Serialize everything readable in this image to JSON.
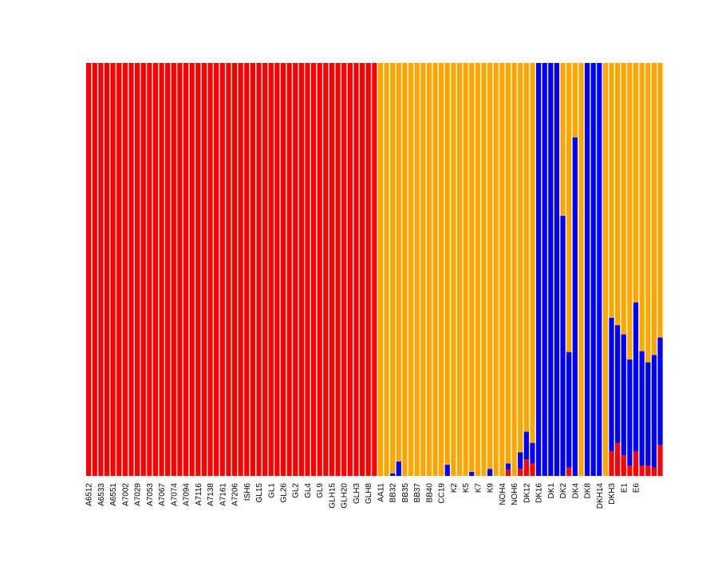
{
  "chart_data": {
    "type": "bar",
    "stacked": true,
    "normalized": true,
    "ylim": [
      0,
      1
    ],
    "grid": false,
    "legend": "none",
    "colors": {
      "red": "#ff0000",
      "blue": "#0000ff",
      "orange": "#ffa500"
    },
    "tick_labels": [
      "A6512",
      "A6533",
      "A6551",
      "A7002",
      "A7029",
      "A7053",
      "A7067",
      "A7074",
      "A7094",
      "A7116",
      "A7138",
      "A7161",
      "A7206",
      "ISH6",
      "GL15",
      "GL1",
      "GL26",
      "GL2",
      "GL4",
      "GL9",
      "GLH15",
      "GLH20",
      "GLH3",
      "GLH8",
      "AA11",
      "BB32",
      "BB35",
      "BB37",
      "BB40",
      "CC19",
      "K2",
      "K5",
      "K7",
      "K9",
      "NOH4",
      "NOH6",
      "DK12",
      "DK16",
      "DK1",
      "DK2",
      "DK4",
      "DK8",
      "DKH14",
      "DKH3",
      "E1",
      "E6"
    ],
    "samples": [
      {
        "id": 1,
        "red": 1,
        "blue": 0,
        "orange": 0
      },
      {
        "id": 2,
        "red": 1,
        "blue": 0,
        "orange": 0
      },
      {
        "id": 3,
        "red": 1,
        "blue": 0,
        "orange": 0
      },
      {
        "id": 4,
        "red": 1,
        "blue": 0,
        "orange": 0
      },
      {
        "id": 5,
        "red": 1,
        "blue": 0,
        "orange": 0
      },
      {
        "id": 6,
        "red": 1,
        "blue": 0,
        "orange": 0
      },
      {
        "id": 7,
        "red": 1,
        "blue": 0,
        "orange": 0
      },
      {
        "id": 8,
        "red": 1,
        "blue": 0,
        "orange": 0
      },
      {
        "id": 9,
        "red": 1,
        "blue": 0,
        "orange": 0
      },
      {
        "id": 10,
        "red": 1,
        "blue": 0,
        "orange": 0
      },
      {
        "id": 11,
        "red": 1,
        "blue": 0,
        "orange": 0
      },
      {
        "id": 12,
        "red": 1,
        "blue": 0,
        "orange": 0
      },
      {
        "id": 13,
        "red": 1,
        "blue": 0,
        "orange": 0
      },
      {
        "id": 14,
        "red": 1,
        "blue": 0,
        "orange": 0
      },
      {
        "id": 15,
        "red": 1,
        "blue": 0,
        "orange": 0
      },
      {
        "id": 16,
        "red": 1,
        "blue": 0,
        "orange": 0
      },
      {
        "id": 17,
        "red": 1,
        "blue": 0,
        "orange": 0
      },
      {
        "id": 18,
        "red": 1,
        "blue": 0,
        "orange": 0
      },
      {
        "id": 19,
        "red": 1,
        "blue": 0,
        "orange": 0
      },
      {
        "id": 20,
        "red": 1,
        "blue": 0,
        "orange": 0
      },
      {
        "id": 21,
        "red": 1,
        "blue": 0,
        "orange": 0
      },
      {
        "id": 22,
        "red": 1,
        "blue": 0,
        "orange": 0
      },
      {
        "id": 23,
        "red": 1,
        "blue": 0,
        "orange": 0
      },
      {
        "id": 24,
        "red": 1,
        "blue": 0,
        "orange": 0
      },
      {
        "id": 25,
        "red": 1,
        "blue": 0,
        "orange": 0
      },
      {
        "id": 26,
        "red": 1,
        "blue": 0,
        "orange": 0
      },
      {
        "id": 27,
        "red": 1,
        "blue": 0,
        "orange": 0
      },
      {
        "id": 28,
        "red": 1,
        "blue": 0,
        "orange": 0
      },
      {
        "id": 29,
        "red": 1,
        "blue": 0,
        "orange": 0
      },
      {
        "id": 30,
        "red": 1,
        "blue": 0,
        "orange": 0
      },
      {
        "id": 31,
        "red": 1,
        "blue": 0,
        "orange": 0
      },
      {
        "id": 32,
        "red": 1,
        "blue": 0,
        "orange": 0
      },
      {
        "id": 33,
        "red": 1,
        "blue": 0,
        "orange": 0
      },
      {
        "id": 34,
        "red": 1,
        "blue": 0,
        "orange": 0
      },
      {
        "id": 35,
        "red": 1,
        "blue": 0,
        "orange": 0
      },
      {
        "id": 36,
        "red": 1,
        "blue": 0,
        "orange": 0
      },
      {
        "id": 37,
        "red": 1,
        "blue": 0,
        "orange": 0
      },
      {
        "id": 38,
        "red": 1,
        "blue": 0,
        "orange": 0
      },
      {
        "id": 39,
        "red": 1,
        "blue": 0,
        "orange": 0
      },
      {
        "id": 40,
        "red": 1,
        "blue": 0,
        "orange": 0
      },
      {
        "id": 41,
        "red": 1,
        "blue": 0,
        "orange": 0
      },
      {
        "id": 42,
        "red": 1,
        "blue": 0,
        "orange": 0
      },
      {
        "id": 43,
        "red": 1,
        "blue": 0,
        "orange": 0
      },
      {
        "id": 44,
        "red": 1,
        "blue": 0,
        "orange": 0
      },
      {
        "id": 45,
        "red": 1,
        "blue": 0,
        "orange": 0
      },
      {
        "id": 46,
        "red": 1,
        "blue": 0,
        "orange": 0
      },
      {
        "id": 47,
        "red": 1,
        "blue": 0,
        "orange": 0
      },
      {
        "id": 48,
        "red": 1,
        "blue": 0,
        "orange": 0
      },
      {
        "id": 49,
        "red": 0,
        "blue": 0,
        "orange": 1
      },
      {
        "id": 50,
        "red": 0,
        "blue": 0,
        "orange": 1
      },
      {
        "id": 51,
        "red": 0,
        "blue": 0.006,
        "orange": 0.994
      },
      {
        "id": 52,
        "red": 0,
        "blue": 0.035,
        "orange": 0.965
      },
      {
        "id": 53,
        "red": 0,
        "blue": 0,
        "orange": 1
      },
      {
        "id": 54,
        "red": 0,
        "blue": 0,
        "orange": 1
      },
      {
        "id": 55,
        "red": 0,
        "blue": 0,
        "orange": 1
      },
      {
        "id": 56,
        "red": 0,
        "blue": 0,
        "orange": 1
      },
      {
        "id": 57,
        "red": 0,
        "blue": 0,
        "orange": 1
      },
      {
        "id": 58,
        "red": 0,
        "blue": 0,
        "orange": 1
      },
      {
        "id": 59,
        "red": 0,
        "blue": 0,
        "orange": 1
      },
      {
        "id": 60,
        "red": 0,
        "blue": 0.027,
        "orange": 0.973
      },
      {
        "id": 61,
        "red": 0,
        "blue": 0,
        "orange": 1
      },
      {
        "id": 62,
        "red": 0,
        "blue": 0,
        "orange": 1
      },
      {
        "id": 63,
        "red": 0,
        "blue": 0,
        "orange": 1
      },
      {
        "id": 64,
        "red": 0,
        "blue": 0.01,
        "orange": 0.99
      },
      {
        "id": 65,
        "red": 0,
        "blue": 0,
        "orange": 1
      },
      {
        "id": 66,
        "red": 0,
        "blue": 0,
        "orange": 1
      },
      {
        "id": 67,
        "red": 0,
        "blue": 0.017,
        "orange": 0.983
      },
      {
        "id": 68,
        "red": 0,
        "blue": 0,
        "orange": 1
      },
      {
        "id": 69,
        "red": 0,
        "blue": 0,
        "orange": 1
      },
      {
        "id": 70,
        "red": 0.015,
        "blue": 0.015,
        "orange": 0.97
      },
      {
        "id": 71,
        "red": 0,
        "blue": 0,
        "orange": 1
      },
      {
        "id": 72,
        "red": 0.017,
        "blue": 0.04,
        "orange": 0.943
      },
      {
        "id": 73,
        "red": 0.04,
        "blue": 0.067,
        "orange": 0.893
      },
      {
        "id": 74,
        "red": 0.03,
        "blue": 0.05,
        "orange": 0.92
      },
      {
        "id": 75,
        "red": 0,
        "blue": 1,
        "orange": 0
      },
      {
        "id": 76,
        "red": 0,
        "blue": 1,
        "orange": 0
      },
      {
        "id": 77,
        "red": 0,
        "blue": 1,
        "orange": 0
      },
      {
        "id": 78,
        "red": 0,
        "blue": 1,
        "orange": 0
      },
      {
        "id": 79,
        "red": 0,
        "blue": 0.63,
        "orange": 0.37
      },
      {
        "id": 80,
        "red": 0.02,
        "blue": 0.28,
        "orange": 0.7
      },
      {
        "id": 81,
        "red": 0,
        "blue": 0.82,
        "orange": 0.18
      },
      {
        "id": 82,
        "red": 0,
        "blue": 0,
        "orange": 1
      },
      {
        "id": 83,
        "red": 0,
        "blue": 1,
        "orange": 0
      },
      {
        "id": 84,
        "red": 0,
        "blue": 1,
        "orange": 0
      },
      {
        "id": 85,
        "red": 0,
        "blue": 1,
        "orange": 0
      },
      {
        "id": 86,
        "red": 0,
        "blue": 0,
        "orange": 1
      },
      {
        "id": 87,
        "red": 0.06,
        "blue": 0.323,
        "orange": 0.617
      },
      {
        "id": 88,
        "red": 0.08,
        "blue": 0.285,
        "orange": 0.635
      },
      {
        "id": 89,
        "red": 0.05,
        "blue": 0.293,
        "orange": 0.657
      },
      {
        "id": 90,
        "red": 0.025,
        "blue": 0.257,
        "orange": 0.718
      },
      {
        "id": 91,
        "red": 0.06,
        "blue": 0.36,
        "orange": 0.58
      },
      {
        "id": 92,
        "red": 0.025,
        "blue": 0.277,
        "orange": 0.698
      },
      {
        "id": 93,
        "red": 0.025,
        "blue": 0.25,
        "orange": 0.725
      },
      {
        "id": 94,
        "red": 0.02,
        "blue": 0.273,
        "orange": 0.707
      },
      {
        "id": 95,
        "red": 0.075,
        "blue": 0.26,
        "orange": 0.665
      }
    ]
  }
}
